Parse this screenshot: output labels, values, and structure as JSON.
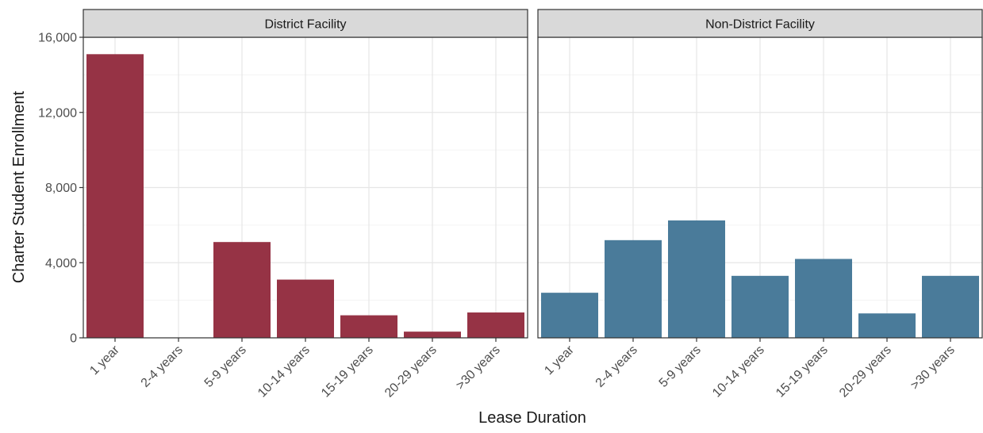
{
  "chart_data": {
    "type": "bar",
    "xlabel": "Lease Duration",
    "ylabel": "Charter Student Enrollment",
    "ylim": [
      0,
      16000
    ],
    "yticks": [
      0,
      4000,
      8000,
      12000,
      16000
    ],
    "ytick_labels": [
      "0",
      "4,000",
      "8,000",
      "12,000",
      "16,000"
    ],
    "categories": [
      "1 year",
      "2-4 years",
      "5-9 years",
      "10-14 years",
      "15-19 years",
      "20-29 years",
      ">30 years"
    ],
    "grid": true,
    "legend": "none",
    "panels": [
      {
        "title": "District Facility",
        "color": "#963345",
        "values": [
          15100,
          0,
          5100,
          3100,
          1200,
          330,
          1350
        ]
      },
      {
        "title": "Non-District Facility",
        "color": "#4a7b9a",
        "values": [
          2400,
          5200,
          6250,
          3300,
          4200,
          1300,
          3300
        ]
      }
    ]
  }
}
